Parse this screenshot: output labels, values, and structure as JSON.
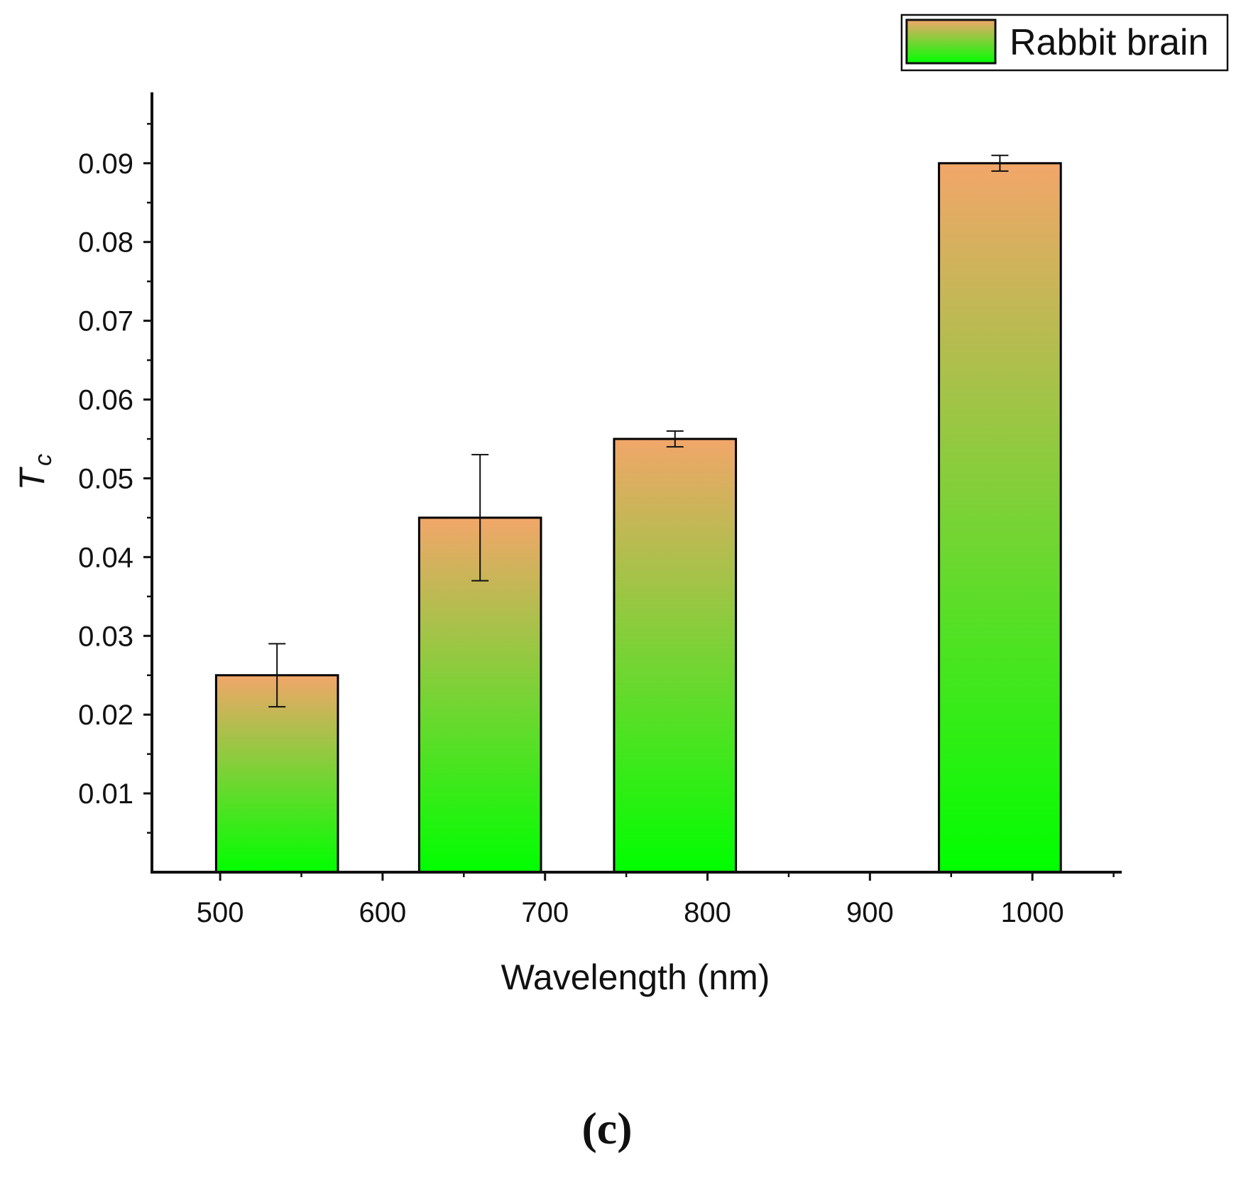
{
  "chart_data": {
    "type": "bar",
    "x": [
      535,
      660,
      780,
      980
    ],
    "values": [
      0.025,
      0.045,
      0.055,
      0.09
    ],
    "error": [
      0.004,
      0.008,
      0.001,
      0.001
    ],
    "bar_width_nm": 75,
    "series": [
      {
        "name": "Rabbit brain",
        "values": [
          0.025,
          0.045,
          0.055,
          0.09
        ]
      }
    ],
    "xlabel": "Wavelength (nm)",
    "ylabel_main": "T",
    "ylabel_sub": "c",
    "xlim": [
      458,
      1055
    ],
    "ylim": [
      0,
      0.099
    ],
    "xticks": [
      500,
      600,
      700,
      800,
      900,
      1000
    ],
    "xtick_labels": [
      "500",
      "600",
      "700",
      "800",
      "900",
      "1000"
    ],
    "yticks": [
      0.01,
      0.02,
      0.03,
      0.04,
      0.05,
      0.06,
      0.07,
      0.08,
      0.09
    ],
    "ytick_labels": [
      "0.01",
      "0.02",
      "0.03",
      "0.04",
      "0.05",
      "0.06",
      "0.07",
      "0.08",
      "0.09"
    ],
    "grid": false,
    "legend_position": "top-right",
    "colors": {
      "bar_top": "#f2a66a",
      "bar_bottom": "#00ff00",
      "bar_edge": "#000000"
    }
  },
  "panel_label": "(c)"
}
